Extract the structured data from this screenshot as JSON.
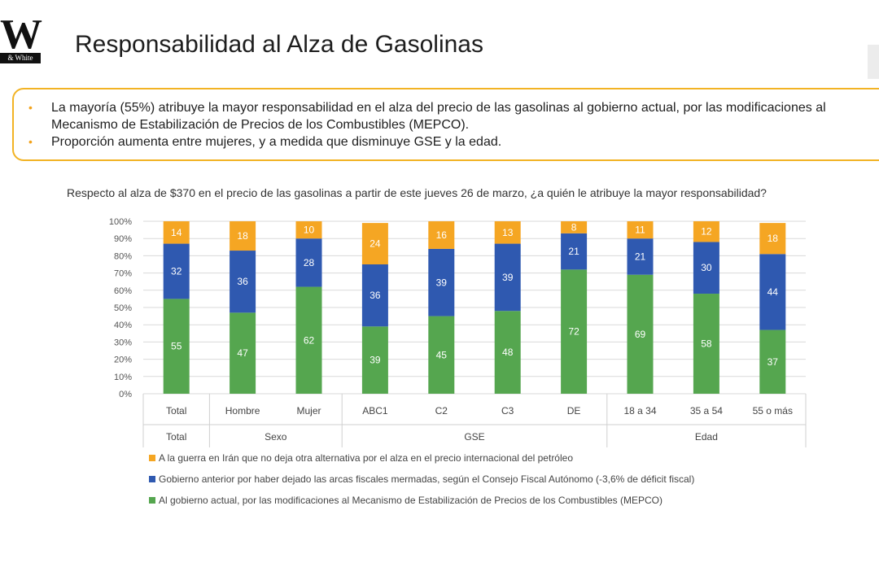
{
  "logo": {
    "mark": "W",
    "caption": "& White"
  },
  "page": {
    "title": "Responsabilidad al Alza de Gasolinas"
  },
  "summary": {
    "bullets": [
      "La mayoría (55%) atribuye la mayor responsabilidad en el alza del precio de las gasolinas al gobierno actual, por las modificaciones al Mecanismo de Estabilización de Precios de los Combustibles (MEPCO).",
      "Proporción aumenta entre mujeres, y a medida que disminuye GSE y la edad."
    ]
  },
  "chart_data": {
    "type": "bar",
    "stacked": true,
    "title": "Respecto al alza de $370 en el precio de las gasolinas a partir de este jueves 26 de marzo, ¿a quién le atribuye la mayor responsabilidad?",
    "categories": [
      "Total",
      "Hombre",
      "Mujer",
      "ABC1",
      "C2",
      "C3",
      "DE",
      "18 a 34",
      "35 a 54",
      "55 o más"
    ],
    "groups": [
      {
        "label": "Total",
        "members": [
          "Total"
        ]
      },
      {
        "label": "Sexo",
        "members": [
          "Hombre",
          "Mujer"
        ]
      },
      {
        "label": "GSE",
        "members": [
          "ABC1",
          "C2",
          "C3",
          "DE"
        ]
      },
      {
        "label": "Edad",
        "members": [
          "18 a 34",
          "35 a 54",
          "55 o más"
        ]
      }
    ],
    "y_ticks": [
      "0%",
      "10%",
      "20%",
      "30%",
      "40%",
      "50%",
      "60%",
      "70%",
      "80%",
      "90%",
      "100%"
    ],
    "ylim": [
      0,
      100
    ],
    "grid": true,
    "legend_position": "bottom-left",
    "series": [
      {
        "name": "Al gobierno actual, por las modificaciones al Mecanismo de Estabilización de Precios de los Combustibles (MEPCO)",
        "color": "#55a64f",
        "values": [
          55,
          47,
          62,
          39,
          45,
          48,
          72,
          69,
          58,
          37
        ]
      },
      {
        "name": "Gobierno anterior por haber dejado las arcas fiscales mermadas, según el Consejo Fiscal Autónomo (-3,6% de déficit fiscal)",
        "color": "#2f59b0",
        "values": [
          32,
          36,
          28,
          36,
          39,
          39,
          21,
          21,
          30,
          44
        ]
      },
      {
        "name": "A la guerra en Irán que no deja otra alternativa por el alza en el precio internacional del petróleo",
        "color": "#f5a623",
        "values": [
          14,
          18,
          10,
          24,
          16,
          13,
          8,
          11,
          12,
          18
        ]
      }
    ],
    "legend_order": [
      2,
      1,
      0
    ]
  }
}
